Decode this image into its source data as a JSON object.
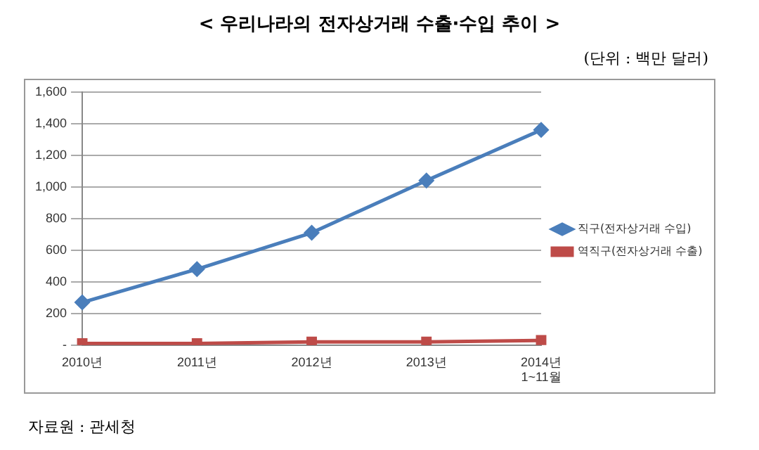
{
  "chart_data": {
    "type": "line",
    "title": "< 우리나라의 전자상거래 수출·수입 추이 >",
    "subtitle": "(단위 : 백만 달러)",
    "annotations": [
      "자료원 : 관세청"
    ],
    "categories": [
      "2010년",
      "2011년",
      "2012년",
      "2013년",
      "2014년\n1~11월"
    ],
    "series": [
      {
        "name": "직구(전자상거래 수입)",
        "color": "#4a7ebb",
        "marker": "diamond",
        "values": [
          270,
          480,
          710,
          1040,
          1360
        ]
      },
      {
        "name": "역직구(전자상거래 수출)",
        "color": "#be4b48",
        "marker": "square",
        "values": [
          10,
          10,
          20,
          20,
          30
        ]
      }
    ],
    "ylim": [
      0,
      1600
    ],
    "yticks": [
      {
        "value": 0,
        "label": "-"
      },
      {
        "value": 200,
        "label": "200"
      },
      {
        "value": 400,
        "label": "400"
      },
      {
        "value": 600,
        "label": "600"
      },
      {
        "value": 800,
        "label": "800"
      },
      {
        "value": 1000,
        "label": "1,000"
      },
      {
        "value": 1200,
        "label": "1,200"
      },
      {
        "value": 1400,
        "label": "1,400"
      },
      {
        "value": 1600,
        "label": "1,600"
      }
    ],
    "grid": "y",
    "legend": "right",
    "line_style": "solid"
  }
}
